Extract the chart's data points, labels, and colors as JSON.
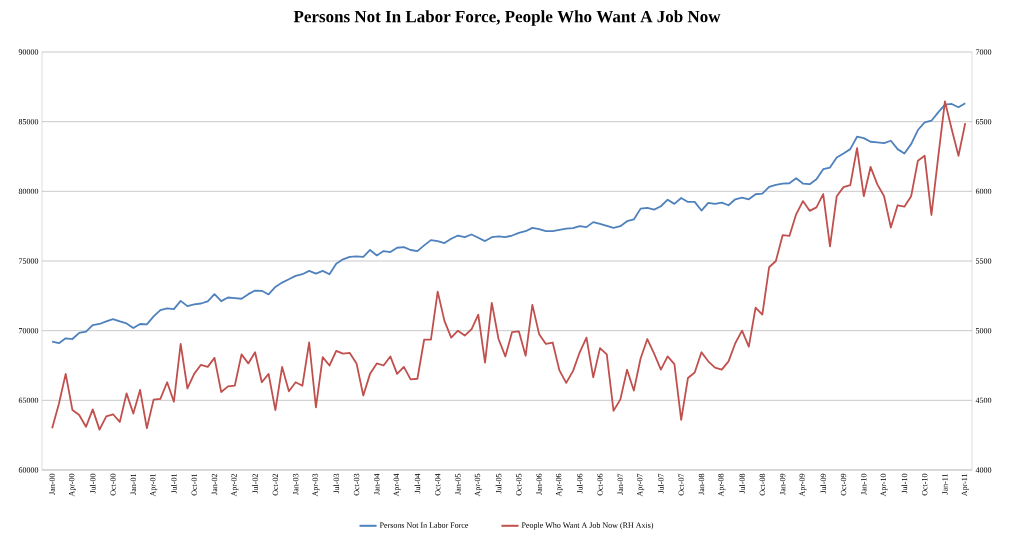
{
  "chart_data": {
    "type": "line",
    "title": "Persons Not In Labor Force, People Who Want A Job Now",
    "categories": [
      "Jan-00",
      null,
      null,
      "Apr-00",
      null,
      null,
      "Jul-00",
      null,
      null,
      "Oct-00",
      null,
      null,
      "Jan-01",
      null,
      null,
      "Apr-01",
      null,
      null,
      "Jul-01",
      null,
      null,
      "Oct-01",
      null,
      null,
      "Jan-02",
      null,
      null,
      "Apr-02",
      null,
      null,
      "Jul-02",
      null,
      null,
      "Oct-02",
      null,
      null,
      "Jan-03",
      null,
      null,
      "Apr-03",
      null,
      null,
      "Jul-03",
      null,
      null,
      "Oct-03",
      null,
      null,
      "Jan-04",
      null,
      null,
      "Apr-04",
      null,
      null,
      "Jul-04",
      null,
      null,
      "Oct-04",
      null,
      null,
      "Jan-05",
      null,
      null,
      "Apr-05",
      null,
      null,
      "Jul-05",
      null,
      null,
      "Oct-05",
      null,
      null,
      "Jan-06",
      null,
      null,
      "Apr-06",
      null,
      null,
      "Jul-06",
      null,
      null,
      "Oct-06",
      null,
      null,
      "Jan-07",
      null,
      null,
      "Apr-07",
      null,
      null,
      "Jul-07",
      null,
      null,
      "Oct-07",
      null,
      null,
      "Jan-08",
      null,
      null,
      "Apr-08",
      null,
      null,
      "Jul-08",
      null,
      null,
      "Oct-08",
      null,
      null,
      "Jan-09",
      null,
      null,
      "Apr-09",
      null,
      null,
      "Jul-09",
      null,
      null,
      "Oct-09",
      null,
      null,
      "Jan-10",
      null,
      null,
      "Apr-10",
      null,
      null,
      "Jul-10",
      null,
      null,
      "Oct-10",
      null,
      null,
      "Jan-11",
      null,
      null,
      "Apr-11"
    ],
    "series": [
      {
        "name": "Persons Not In Labor Force",
        "color": "#4f81bd",
        "values": [
          69220,
          69100,
          69450,
          69400,
          69840,
          69930,
          70400,
          70480,
          70670,
          70830,
          70670,
          70520,
          70190,
          70480,
          70450,
          71020,
          71480,
          71600,
          71550,
          72140,
          71760,
          71880,
          71950,
          72100,
          72620,
          72120,
          72380,
          72330,
          72290,
          72620,
          72880,
          72860,
          72600,
          73140,
          73450,
          73690,
          73930,
          74050,
          74290,
          74100,
          74290,
          74050,
          74810,
          75120,
          75290,
          75330,
          75290,
          75790,
          75400,
          75710,
          75640,
          75950,
          76000,
          75790,
          75710,
          76120,
          76500,
          76430,
          76290,
          76600,
          76830,
          76710,
          76900,
          76670,
          76430,
          76710,
          76760,
          76710,
          76830,
          77020,
          77140,
          77380,
          77290,
          77140,
          77140,
          77240,
          77330,
          77360,
          77500,
          77430,
          77790,
          77670,
          77520,
          77380,
          77500,
          77860,
          77980,
          78760,
          78810,
          78690,
          78930,
          79400,
          79100,
          79520,
          79240,
          79240,
          78620,
          79170,
          79100,
          79190,
          79000,
          79430,
          79550,
          79430,
          79790,
          79840,
          80320,
          80470,
          80560,
          80580,
          80940,
          80560,
          80510,
          80870,
          81590,
          81710,
          82430,
          82720,
          83030,
          83920,
          83820,
          83560,
          83510,
          83460,
          83630,
          83030,
          82720,
          83390,
          84400,
          84950,
          85070,
          85670,
          86220,
          86270,
          86030,
          86320
        ]
      },
      {
        "name": "People Who Want A Job Now (RH Axis)",
        "color": "#c0504d",
        "axis": "y2",
        "values": [
          4300,
          4475,
          4690,
          4430,
          4395,
          4310,
          4435,
          4290,
          4385,
          4400,
          4345,
          4550,
          4405,
          4575,
          4300,
          4505,
          4510,
          4630,
          4490,
          4905,
          4585,
          4690,
          4755,
          4740,
          4805,
          4560,
          4600,
          4605,
          4830,
          4765,
          4845,
          4630,
          4690,
          4430,
          4740,
          4565,
          4630,
          4605,
          4915,
          4450,
          4810,
          4750,
          4855,
          4835,
          4840,
          4765,
          4535,
          4690,
          4765,
          4750,
          4815,
          4690,
          4740,
          4650,
          4655,
          4935,
          4935,
          5280,
          5070,
          4950,
          5000,
          4965,
          5010,
          5115,
          4770,
          5200,
          4940,
          4815,
          4990,
          4995,
          4820,
          5185,
          4975,
          4905,
          4915,
          4715,
          4625,
          4710,
          4845,
          4950,
          4665,
          4875,
          4830,
          4425,
          4505,
          4720,
          4570,
          4800,
          4940,
          4835,
          4720,
          4815,
          4760,
          4360,
          4660,
          4700,
          4845,
          4780,
          4735,
          4720,
          4780,
          4910,
          5000,
          4885,
          5165,
          5115,
          5455,
          5500,
          5685,
          5680,
          5835,
          5930,
          5860,
          5885,
          5980,
          5605,
          5965,
          6030,
          6045,
          6310,
          5965,
          6175,
          6050,
          5965,
          5740,
          5900,
          5890,
          5965,
          6220,
          6255,
          5830,
          6245,
          6645,
          6445,
          6255,
          6490
        ]
      }
    ],
    "ylim": [
      60000,
      90000
    ],
    "yticks": [
      60000,
      65000,
      70000,
      75000,
      80000,
      85000,
      90000
    ],
    "y2lim": [
      4000,
      7000
    ],
    "y2ticks": [
      4000,
      4500,
      5000,
      5500,
      6000,
      6500,
      7000
    ],
    "grid": "y",
    "legend": "bottom"
  }
}
